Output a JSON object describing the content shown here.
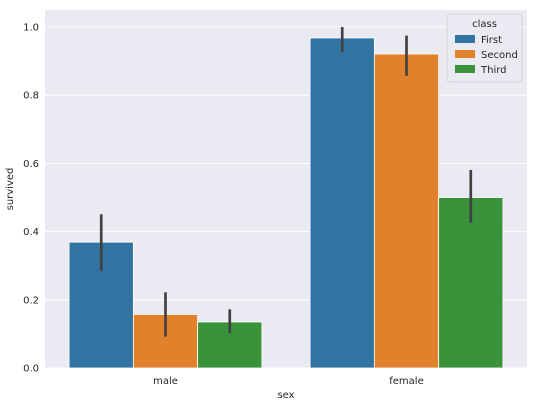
{
  "chart_data": {
    "type": "bar",
    "categories": [
      "male",
      "female"
    ],
    "series": [
      {
        "name": "First",
        "color": "#3274a1",
        "values": [
          0.369,
          0.968
        ],
        "ci": [
          [
            0.285,
            0.451
          ],
          [
            0.926,
            1.0
          ]
        ]
      },
      {
        "name": "Second",
        "color": "#e1812c",
        "values": [
          0.157,
          0.921
        ],
        "ci": [
          [
            0.092,
            0.222
          ],
          [
            0.857,
            0.975
          ]
        ]
      },
      {
        "name": "Third",
        "color": "#3a923a",
        "values": [
          0.135,
          0.5
        ],
        "ci": [
          [
            0.102,
            0.172
          ],
          [
            0.426,
            0.581
          ]
        ]
      }
    ],
    "xlabel": "sex",
    "ylabel": "survived",
    "ylim": [
      0,
      1.05
    ],
    "yticks": [
      0.0,
      0.2,
      0.4,
      0.6,
      0.8,
      1.0
    ],
    "ytick_labels": [
      "0.0",
      "0.2",
      "0.4",
      "0.6",
      "0.8",
      "1.0"
    ],
    "legend": {
      "title": "class",
      "placement": "top-right"
    },
    "grid": true,
    "background": "#eaeaf2"
  }
}
